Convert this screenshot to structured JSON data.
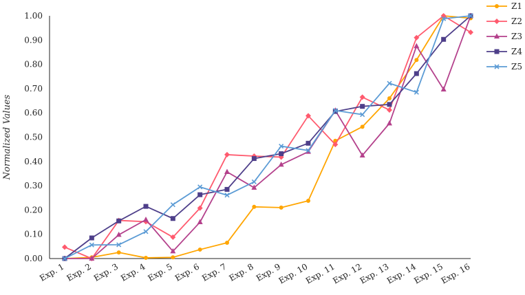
{
  "chart_data": {
    "type": "line",
    "title": "",
    "xlabel": "",
    "ylabel": "Normalized Values",
    "ylim": [
      0,
      1
    ],
    "yticks": [
      "0.00",
      "0.10",
      "0.20",
      "0.30",
      "0.40",
      "0.50",
      "0.60",
      "0.70",
      "0.80",
      "0.90",
      "1.00"
    ],
    "categories": [
      "Exp. 1",
      "Exp. 2",
      "Exp. 3",
      "Exp. 4",
      "Exp. 5",
      "Exp. 6",
      "Exp. 7",
      "Exp. 8",
      "Exp. 9",
      "Exp. 10",
      "Exp. 11",
      "Exp. 12",
      "Exp. 13",
      "Exp. 14",
      "Exp. 15",
      "Exp. 16"
    ],
    "grid": false,
    "legend_position": "top-right",
    "series": [
      {
        "name": "Z1",
        "color": "#FFA500",
        "marker": "circle",
        "values": [
          0.0,
          0.005,
          0.025,
          0.003,
          0.005,
          0.037,
          0.065,
          0.213,
          0.21,
          0.238,
          0.485,
          0.543,
          0.66,
          0.818,
          1.0,
          0.99
        ]
      },
      {
        "name": "Z2",
        "color": "#FF5A6E",
        "marker": "diamond",
        "values": [
          0.047,
          0.0,
          0.157,
          0.152,
          0.088,
          0.208,
          0.428,
          0.422,
          0.418,
          0.588,
          0.47,
          0.665,
          0.612,
          0.91,
          1.0,
          0.932
        ]
      },
      {
        "name": "Z3",
        "color": "#B4418C",
        "marker": "triangle",
        "values": [
          0.0,
          0.0,
          0.098,
          0.16,
          0.03,
          0.15,
          0.357,
          0.292,
          0.387,
          0.44,
          0.61,
          0.425,
          0.557,
          0.875,
          0.697,
          1.0
        ]
      },
      {
        "name": "Z4",
        "color": "#4E3F8A",
        "marker": "square",
        "values": [
          0.0,
          0.085,
          0.155,
          0.215,
          0.165,
          0.263,
          0.285,
          0.412,
          0.432,
          0.475,
          0.606,
          0.627,
          0.635,
          0.762,
          0.903,
          1.0
        ]
      },
      {
        "name": "Z5",
        "color": "#5B9BD5",
        "marker": "x",
        "values": [
          0.0,
          0.056,
          0.057,
          0.111,
          0.222,
          0.295,
          0.261,
          0.316,
          0.463,
          0.445,
          0.61,
          0.593,
          0.722,
          0.685,
          0.988,
          1.0
        ]
      }
    ]
  }
}
